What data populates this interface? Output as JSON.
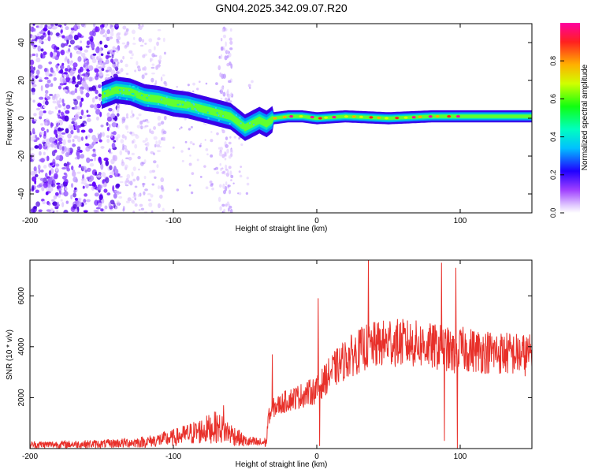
{
  "title": "GN04.2025.342.09.07.R20",
  "chart_data": [
    {
      "type": "heatmap",
      "name": "spectrogram",
      "xlabel": "Height of straight line (km)",
      "ylabel": "Frequency (Hz)",
      "xlim": [
        -200,
        150
      ],
      "ylim": [
        -50,
        50
      ],
      "xticks": [
        -200,
        -100,
        0,
        100
      ],
      "yticks": [
        -40,
        -20,
        0,
        20,
        40
      ],
      "ridge": {
        "x": [
          -150,
          -140,
          -130,
          -120,
          -110,
          -100,
          -90,
          -80,
          -70,
          -60,
          -55,
          -50,
          -45,
          -40,
          -35,
          -30,
          -20,
          -10,
          0,
          20,
          50,
          80,
          100,
          150
        ],
        "freq": [
          12,
          15,
          14,
          11,
          10,
          8,
          7,
          5,
          3,
          1,
          -2,
          -5,
          -3,
          -1,
          -3,
          0,
          1,
          1,
          0,
          1,
          0,
          1,
          1,
          1
        ]
      },
      "colorbar": {
        "label": "Normalized spectral amplitude",
        "range": [
          0,
          1
        ],
        "ticks": [
          0.0,
          0.2,
          0.4,
          0.6,
          0.8
        ]
      }
    },
    {
      "type": "line",
      "name": "snr",
      "xlabel": "Height of straight line (km)",
      "ylabel": "SNR (10 * v/v)",
      "xlim": [
        -200,
        150
      ],
      "ylim": [
        0,
        7400
      ],
      "xticks": [
        -200,
        -100,
        0,
        100
      ],
      "yticks": [
        2000,
        4000,
        6000
      ],
      "color": "#e8302a",
      "trend": {
        "x": [
          -200,
          -150,
          -120,
          -100,
          -90,
          -80,
          -70,
          -60,
          -50,
          -40,
          -35,
          -34,
          -30,
          -20,
          -10,
          0,
          10,
          20,
          30,
          35,
          40,
          50,
          60,
          70,
          80,
          90,
          95,
          100,
          110,
          130,
          150
        ],
        "y": [
          150,
          180,
          260,
          420,
          560,
          700,
          850,
          600,
          280,
          220,
          250,
          1200,
          1600,
          1900,
          2100,
          2300,
          3000,
          3500,
          3850,
          4000,
          4050,
          4150,
          4150,
          4100,
          4000,
          3950,
          3700,
          3900,
          3850,
          3750,
          3650
        ]
      },
      "spikes": [
        {
          "x": -65,
          "y": 1700
        },
        {
          "x": -31,
          "y": 3700
        },
        {
          "x": 1,
          "y": 5900
        },
        {
          "x": 2,
          "y": 100
        },
        {
          "x": 36,
          "y": 7400
        },
        {
          "x": 51,
          "y": 5000
        },
        {
          "x": 87,
          "y": 7300
        },
        {
          "x": 89,
          "y": 300
        },
        {
          "x": 97,
          "y": 7100
        },
        {
          "x": 98,
          "y": 0
        }
      ]
    }
  ]
}
